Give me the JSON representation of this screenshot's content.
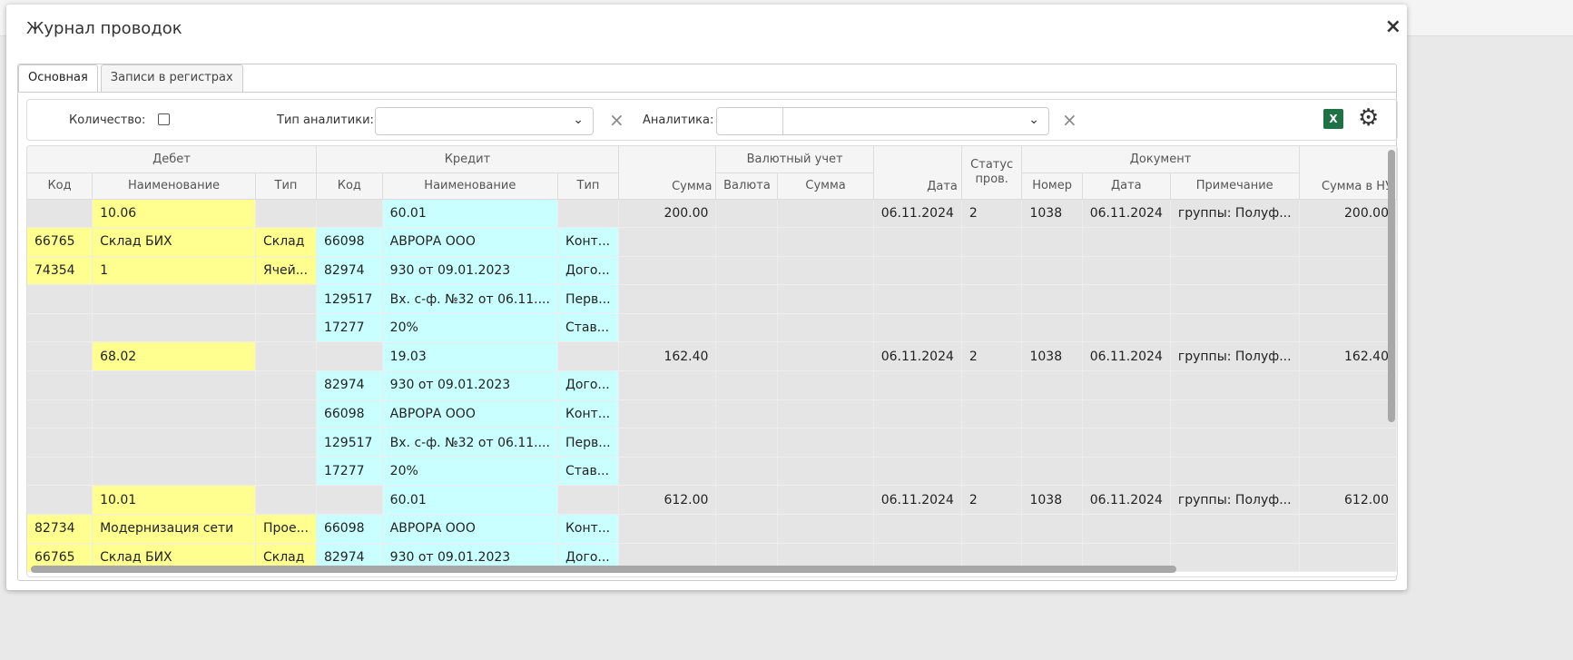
{
  "title": "Журнал проводок",
  "close_icon": "×",
  "tabs": [
    "Основная",
    "Записи в регистрах"
  ],
  "filters": {
    "quantity_label": "Количество:",
    "quantity_checked": false,
    "analytic_type_label": "Тип аналитики:",
    "analytic_type_value": "",
    "analytic_label": "Аналитика:",
    "analytic_code": "",
    "analytic_value": "",
    "excel_label": "X"
  },
  "colors": {
    "debit": "#ffff8f",
    "credit": "#c9ffff",
    "base": "#e5e5e5",
    "excel": "#1e7145"
  },
  "header_groups": {
    "debit": "Дебет",
    "credit": "Кредит",
    "currency": "Валютный учет",
    "status": "Статус пров.",
    "document": "Документ"
  },
  "columns": [
    "Код",
    "Наименование",
    "Тип",
    "Код",
    "Наименование",
    "Тип",
    "Сумма",
    "Валюта",
    "Сумма",
    "Дата",
    "Статус пров.",
    "Номер",
    "Дата",
    "Примечание",
    "Сумма в НУ"
  ],
  "rows": [
    {
      "d": "acc",
      "c": "acc",
      "cells": [
        "",
        "10.06",
        "",
        "",
        "60.01",
        "",
        "200.00",
        "",
        "",
        "06.11.2024",
        "2",
        "1038",
        "06.11.2024",
        "группы: Полуф...",
        "200.00"
      ]
    },
    {
      "d": "an",
      "c": "an",
      "cells": [
        "66765",
        "Склад БИХ",
        "Склад",
        "66098",
        "АВРОРА ООО",
        "Конт...",
        "",
        "",
        "",
        "",
        "",
        "",
        "",
        "",
        ""
      ]
    },
    {
      "d": "an",
      "c": "an",
      "cells": [
        "74354",
        "1",
        "Ячей...",
        "82974",
        "930 от 09.01.2023",
        "Дого...",
        "",
        "",
        "",
        "",
        "",
        "",
        "",
        "",
        ""
      ]
    },
    {
      "d": "no",
      "c": "an",
      "cells": [
        "",
        "",
        "",
        "129517",
        "Вх. с-ф. №32 от 06.11....",
        "Перв...",
        "",
        "",
        "",
        "",
        "",
        "",
        "",
        "",
        ""
      ]
    },
    {
      "d": "no",
      "c": "an",
      "cells": [
        "",
        "",
        "",
        "17277",
        "20%",
        "Став...",
        "",
        "",
        "",
        "",
        "",
        "",
        "",
        "",
        ""
      ]
    },
    {
      "d": "acc",
      "c": "acc",
      "cells": [
        "",
        "68.02",
        "",
        "",
        "19.03",
        "",
        "162.40",
        "",
        "",
        "06.11.2024",
        "2",
        "1038",
        "06.11.2024",
        "группы: Полуф...",
        "162.40"
      ]
    },
    {
      "d": "no",
      "c": "an",
      "cells": [
        "",
        "",
        "",
        "82974",
        "930 от 09.01.2023",
        "Дого...",
        "",
        "",
        "",
        "",
        "",
        "",
        "",
        "",
        ""
      ]
    },
    {
      "d": "no",
      "c": "an",
      "cells": [
        "",
        "",
        "",
        "66098",
        "АВРОРА ООО",
        "Конт...",
        "",
        "",
        "",
        "",
        "",
        "",
        "",
        "",
        ""
      ]
    },
    {
      "d": "no",
      "c": "an",
      "cells": [
        "",
        "",
        "",
        "129517",
        "Вх. с-ф. №32 от 06.11....",
        "Перв...",
        "",
        "",
        "",
        "",
        "",
        "",
        "",
        "",
        ""
      ]
    },
    {
      "d": "no",
      "c": "an",
      "cells": [
        "",
        "",
        "",
        "17277",
        "20%",
        "Став...",
        "",
        "",
        "",
        "",
        "",
        "",
        "",
        "",
        ""
      ]
    },
    {
      "d": "acc",
      "c": "acc",
      "cells": [
        "",
        "10.01",
        "",
        "",
        "60.01",
        "",
        "612.00",
        "",
        "",
        "06.11.2024",
        "2",
        "1038",
        "06.11.2024",
        "группы: Полуф...",
        "612.00"
      ]
    },
    {
      "d": "an",
      "c": "an",
      "cells": [
        "82734",
        "Модернизация сети",
        "Прое...",
        "66098",
        "АВРОРА ООО",
        "Конт...",
        "",
        "",
        "",
        "",
        "",
        "",
        "",
        "",
        ""
      ]
    },
    {
      "d": "an",
      "c": "an",
      "cells": [
        "66765",
        "Склад БИХ",
        "Склад",
        "82974",
        "930 от 09.01.2023",
        "Дого...",
        "",
        "",
        "",
        "",
        "",
        "",
        "",
        "",
        ""
      ]
    }
  ]
}
